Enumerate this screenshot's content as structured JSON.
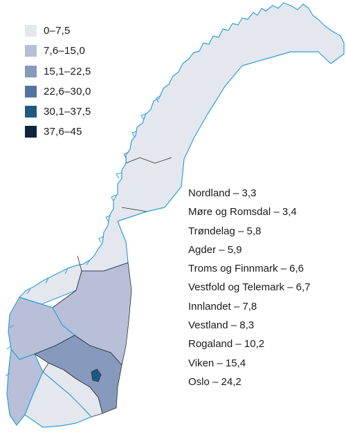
{
  "legend": {
    "items": [
      {
        "label": "0–7,5",
        "color": "#e5e7ef"
      },
      {
        "label": "7,6–15,0",
        "color": "#b7c0d8"
      },
      {
        "label": "15,1–22,5",
        "color": "#8799bd"
      },
      {
        "label": "22,6–30,0",
        "color": "#54749f"
      },
      {
        "label": "30,1–37,5",
        "color": "#1d5a82"
      },
      {
        "label": "37,6–45",
        "color": "#10233f"
      }
    ]
  },
  "regions": [
    {
      "label": "Nordland – 3,3",
      "value": 3.3
    },
    {
      "label": "Møre og Romsdal – 3,4",
      "value": 3.4
    },
    {
      "label": "Trøndelag – 5,8",
      "value": 5.8
    },
    {
      "label": "Agder – 5,9",
      "value": 5.9
    },
    {
      "label": "Troms og Finnmark – 6,6",
      "value": 6.6
    },
    {
      "label": "Vestfold og Telemark – 6,7",
      "value": 6.7
    },
    {
      "label": "Innlandet – 7,8",
      "value": 7.8
    },
    {
      "label": "Vestland – 8,3",
      "value": 8.3
    },
    {
      "label": "Rogaland – 10,2",
      "value": 10.2
    },
    {
      "label": "Viken – 15,4",
      "value": 15.4
    },
    {
      "label": "Oslo – 24,2",
      "value": 24.2
    }
  ],
  "colors": {
    "coastline": "#2e9fd6",
    "border": "#2a2a2a"
  }
}
